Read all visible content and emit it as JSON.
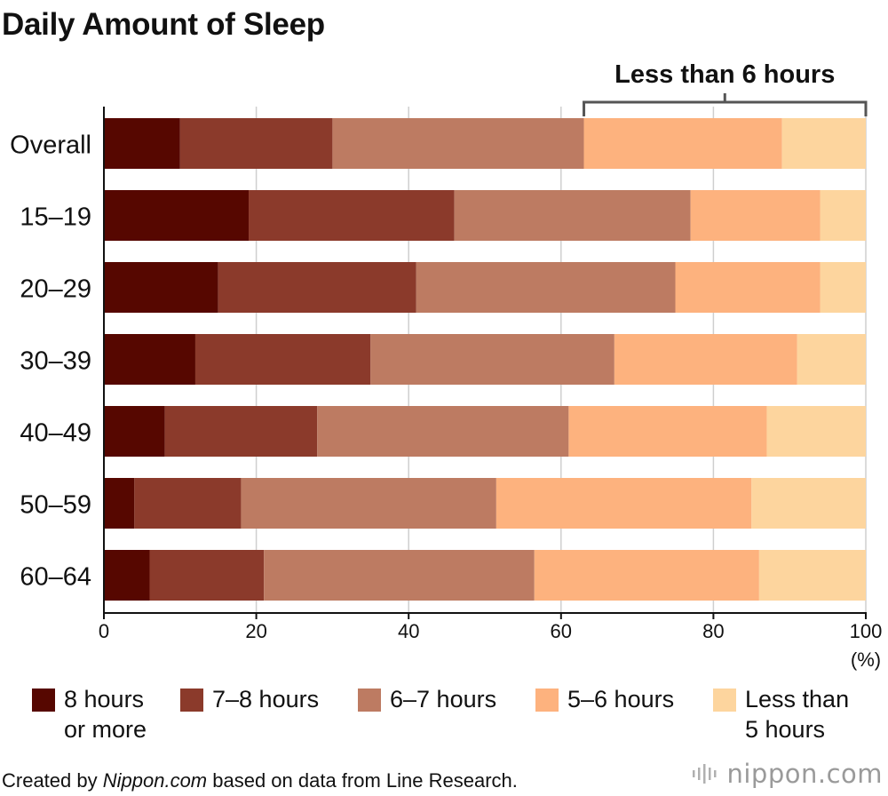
{
  "title": "Daily Amount of Sleep",
  "chart_data": {
    "type": "bar",
    "orientation": "horizontal",
    "stacked": true,
    "title": "Daily Amount of Sleep",
    "categories": [
      "Overall",
      "15–19",
      "20–29",
      "30–39",
      "40–49",
      "50–59",
      "60–64"
    ],
    "series": [
      {
        "name": "8 hours\nor more",
        "color": "#560700",
        "values": [
          10,
          19,
          15,
          12,
          8,
          4,
          6
        ]
      },
      {
        "name": "7–8 hours",
        "color": "#8b3a2b",
        "values": [
          20,
          27,
          26,
          23,
          20,
          14,
          15
        ]
      },
      {
        "name": "6–7 hours",
        "color": "#bd7b62",
        "values": [
          33,
          31,
          34,
          32,
          33,
          33.5,
          35.5
        ]
      },
      {
        "name": "5–6 hours",
        "color": "#fdb27e",
        "values": [
          26,
          17,
          19,
          24,
          26,
          33.5,
          29.5
        ]
      },
      {
        "name": "Less than\n5 hours",
        "color": "#fdd59e",
        "values": [
          11,
          6,
          6,
          9,
          13,
          15,
          14
        ]
      }
    ],
    "xlim": [
      0,
      100
    ],
    "xticks": [
      "0",
      "20",
      "40",
      "60",
      "80",
      "100"
    ],
    "unit_label": "(%)",
    "grid": true,
    "legend_position": "bottom",
    "annotation": {
      "text": "Less than 6 hours",
      "from": 63,
      "to": 100
    }
  },
  "footer": {
    "prefix": "Created by ",
    "source_name": "Nippon.com",
    "suffix": " based on data from Line Research."
  },
  "logo": {
    "text": "nippon.com",
    "icon": "sound-waves-icon"
  }
}
